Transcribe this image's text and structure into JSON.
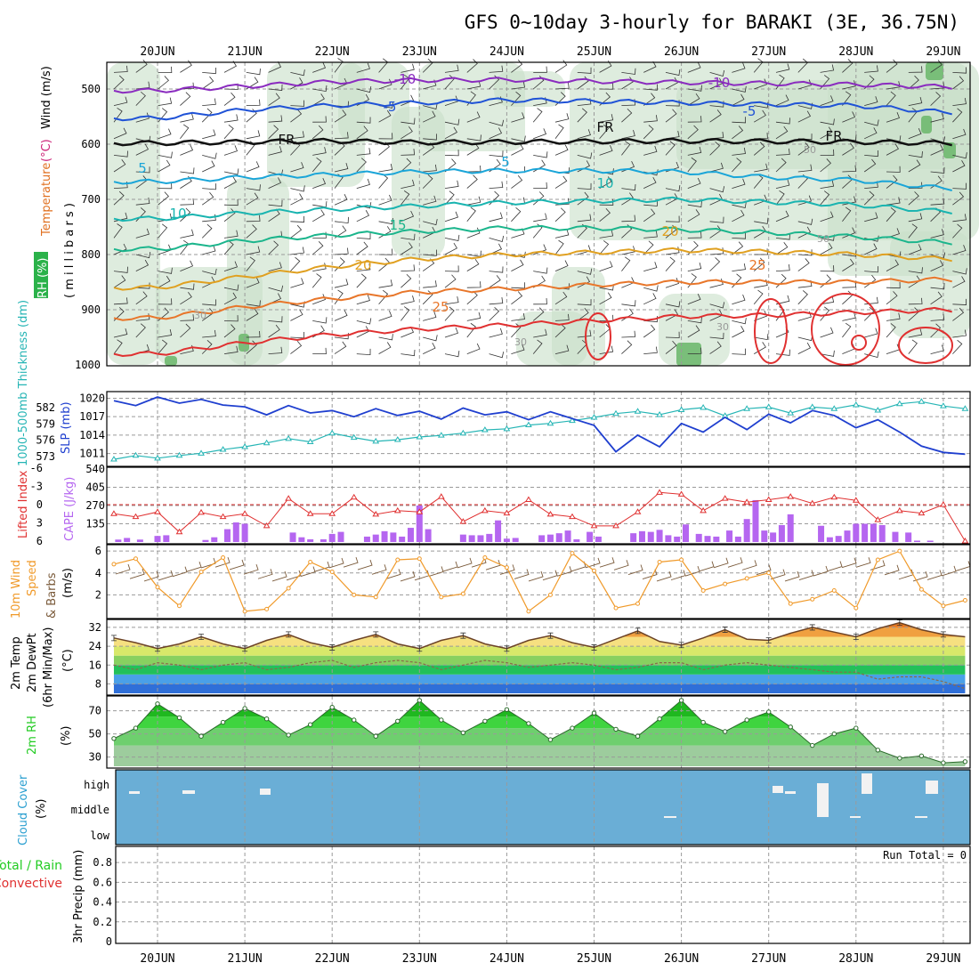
{
  "title": "GFS 0~10day 3-hourly for BARAKI (3E, 36.75N)",
  "dates": [
    "20JUN",
    "21JUN",
    "22JUN",
    "23JUN",
    "24JUN",
    "25JUN",
    "26JUN",
    "27JUN",
    "28JUN",
    "29JUN"
  ],
  "run_total": "Run Total = 0",
  "colors": {
    "rh_shade": "#c8dfc8",
    "rh_dark": "#6fb96f",
    "temp_neg10": "#8a2bbf",
    "temp_neg5": "#1f52d6",
    "temp_fr": "#111111",
    "temp_5": "#1aa5d8",
    "temp_10": "#19b4b0",
    "temp_15": "#1bb58c",
    "temp_20": "#e0a020",
    "temp_25": "#e8762a",
    "temp_30": "#e03030",
    "temp_35": "#cc1880",
    "slp": "#1f3fcf",
    "thickness": "#26b5b5",
    "lifted": "#e03030",
    "cape": "#b566f0",
    "wind": "#f09a2a",
    "barb": "#7a5a3a",
    "cloud": "#6aaed6",
    "rh2m": "#22cc22",
    "precip_total": "#22cc22",
    "precip_conv": "#e03030"
  },
  "panels": {
    "upper": {
      "ylabel_rh": "RH (%)",
      "ylabel_temp": "Temperature",
      "ylabel_temp_unit": "(°C)",
      "ylabel_wind": "Wind (m/s)",
      "ylabel_mb": "( m i l l i b a r s )",
      "yticks": [
        "500",
        "600",
        "700",
        "800",
        "900",
        "1000"
      ],
      "contour_labels": [
        {
          "text": "-10",
          "color": "temp_neg10"
        },
        {
          "text": "-10",
          "color": "temp_neg10"
        },
        {
          "text": "-5",
          "color": "temp_neg5"
        },
        {
          "text": "-5",
          "color": "temp_neg5"
        },
        {
          "text": "FR",
          "color": "temp_fr"
        },
        {
          "text": "FR",
          "color": "temp_fr"
        },
        {
          "text": "FR",
          "color": "temp_fr"
        },
        {
          "text": "5",
          "color": "temp_5"
        },
        {
          "text": "5",
          "color": "temp_5"
        },
        {
          "text": "10",
          "color": "temp_10"
        },
        {
          "text": "10",
          "color": "temp_10"
        },
        {
          "text": "15",
          "color": "temp_15"
        },
        {
          "text": "20",
          "color": "temp_20"
        },
        {
          "text": "20",
          "color": "temp_20"
        },
        {
          "text": "25",
          "color": "temp_25"
        },
        {
          "text": "25",
          "color": "temp_25"
        },
        {
          "text": "30",
          "color": "rh_text"
        },
        {
          "text": "30",
          "color": "rh_text"
        },
        {
          "text": "30",
          "color": "rh_text"
        },
        {
          "text": "50",
          "color": "rh_text"
        },
        {
          "text": "50",
          "color": "rh_text"
        }
      ]
    },
    "slp_thk": {
      "ylabel_thk": "1000-500mb Thickness (dm)",
      "ylabel_slp": "SLP (mb)",
      "yticks_thk": [
        "582",
        "579",
        "576",
        "573"
      ],
      "yticks_slp": [
        "1020",
        "1017",
        "1014",
        "1011"
      ]
    },
    "li_cape": {
      "ylabel_li": "Lifted Index",
      "ylabel_cape": "CAPE (J/kg)",
      "yticks_li": [
        "-6",
        "-3",
        "0",
        "3",
        "6"
      ],
      "yticks_cape": [
        "540",
        "405",
        "270",
        "135"
      ]
    },
    "wind10": {
      "ylabel_a": "10m Wind",
      "ylabel_b": "Speed",
      "ylabel_c": "& Barbs",
      "ylabel_unit": "(m/s)",
      "yticks": [
        "6",
        "4",
        "2"
      ]
    },
    "temp2m": {
      "ylabel_a": "2m Temp",
      "ylabel_b": "2m DewPt",
      "ylabel_c": "(6hr Min/Max)",
      "ylabel_unit": "(°C)",
      "yticks": [
        "32",
        "24",
        "16",
        "8"
      ]
    },
    "rh2m": {
      "ylabel": "2m RH",
      "ylabel_unit": "(%)",
      "yticks": [
        "70",
        "50",
        "30"
      ]
    },
    "cloud": {
      "ylabel": "Cloud Cover",
      "ylabel_unit": "(%)",
      "levels": [
        "high",
        "middle",
        "low"
      ]
    },
    "precip": {
      "ylabel_a": "Total / Rain",
      "ylabel_b": "Convective",
      "ylabel_c": "3hr Precip (mm)",
      "yticks": [
        "0.8",
        "0.6",
        "0.4",
        "0.2",
        "0"
      ]
    }
  },
  "chart_data": [
    {
      "type": "line",
      "name": "SLP",
      "ylabel": "SLP (mb)",
      "ylim": [
        1009.5,
        1021
      ],
      "x_unit": "days from 20JUN 00Z",
      "x": [
        -0.5,
        -0.25,
        0,
        0.25,
        0.5,
        0.75,
        1,
        1.25,
        1.5,
        1.75,
        2,
        2.25,
        2.5,
        2.75,
        3,
        3.25,
        3.5,
        3.75,
        4,
        4.25,
        4.5,
        4.75,
        5,
        5.25,
        5.5,
        5.75,
        6,
        6.25,
        6.5,
        6.75,
        7,
        7.25,
        7.5,
        7.75,
        8,
        8.25,
        8.5,
        8.75,
        9,
        9.25
      ],
      "values": [
        1019.6,
        1018.8,
        1020.2,
        1019.2,
        1019.8,
        1018.9,
        1018.6,
        1017.3,
        1018.8,
        1017.6,
        1018.0,
        1017.0,
        1018.3,
        1017.2,
        1017.9,
        1016.6,
        1018.4,
        1017.3,
        1017.8,
        1016.5,
        1017.8,
        1016.7,
        1015.6,
        1011.3,
        1014.0,
        1012.1,
        1015.9,
        1014.5,
        1016.9,
        1014.9,
        1017.4,
        1016.0,
        1018.0,
        1017.2,
        1015.2,
        1016.5,
        1014.5,
        1012.2,
        1011.2,
        1010.9
      ]
    },
    {
      "type": "line",
      "name": "Thickness",
      "ylabel": "1000-500mb Thickness (dm)",
      "ylim": [
        571.8,
        584.5
      ],
      "x_unit": "days from 20JUN 00Z",
      "x": [
        -0.5,
        -0.25,
        0,
        0.25,
        0.5,
        0.75,
        1,
        1.25,
        1.5,
        1.75,
        2,
        2.25,
        2.5,
        2.75,
        3,
        3.25,
        3.5,
        3.75,
        4,
        4.25,
        4.5,
        4.75,
        5,
        5.25,
        5.5,
        5.75,
        6,
        6.25,
        6.5,
        6.75,
        7,
        7.25,
        7.5,
        7.75,
        8,
        8.25,
        8.5,
        8.75,
        9,
        9.25
      ],
      "values": [
        572.5,
        573.2,
        572.7,
        573.2,
        573.6,
        574.3,
        574.8,
        575.5,
        576.3,
        575.7,
        577.3,
        576.5,
        575.8,
        576.1,
        576.6,
        576.9,
        577.3,
        577.9,
        578.1,
        578.8,
        579.1,
        579.6,
        580.2,
        580.9,
        581.3,
        580.7,
        581.6,
        582.0,
        580.5,
        581.8,
        582.1,
        581.0,
        582.1,
        581.8,
        582.5,
        581.5,
        582.7,
        583.1,
        582.3,
        581.8
      ]
    },
    {
      "type": "bar",
      "name": "CAPE",
      "ylabel": "CAPE (J/kg)",
      "ylim": [
        0,
        540
      ],
      "x_unit": "days from 20JUN 00Z",
      "x": [
        -0.45,
        -0.35,
        -0.2,
        0,
        0.1,
        0.55,
        0.65,
        0.8,
        0.9,
        1.0,
        1.55,
        1.65,
        1.75,
        1.9,
        2.0,
        2.1,
        2.4,
        2.5,
        2.6,
        2.7,
        2.8,
        2.9,
        3.0,
        3.1,
        3.5,
        3.6,
        3.7,
        3.8,
        3.9,
        4.0,
        4.1,
        4.4,
        4.5,
        4.6,
        4.7,
        4.8,
        4.95,
        5.05,
        5.45,
        5.55,
        5.65,
        5.75,
        5.85,
        5.95,
        6.05,
        6.2,
        6.3,
        6.4,
        6.55,
        6.65,
        6.75,
        6.85,
        6.95,
        7.05,
        7.15,
        7.25,
        7.6,
        7.7,
        7.8,
        7.9,
        8.0,
        8.1,
        8.2,
        8.3,
        8.45,
        8.6,
        8.7,
        8.85
      ],
      "values": [
        18,
        30,
        18,
        45,
        50,
        15,
        35,
        95,
        145,
        135,
        70,
        35,
        20,
        20,
        60,
        75,
        40,
        55,
        80,
        70,
        40,
        105,
        270,
        95,
        55,
        50,
        50,
        60,
        160,
        25,
        30,
        50,
        55,
        65,
        85,
        20,
        75,
        40,
        65,
        80,
        75,
        90,
        50,
        40,
        130,
        60,
        45,
        40,
        85,
        40,
        170,
        310,
        85,
        70,
        125,
        205,
        120,
        35,
        45,
        85,
        135,
        135,
        135,
        125,
        75,
        70,
        10,
        10
      ]
    },
    {
      "type": "line",
      "name": "Lifted Index",
      "ylabel": "Lifted Index",
      "ylim": [
        6,
        -6
      ],
      "x_unit": "days from 20JUN 00Z",
      "x": [
        -0.5,
        -0.25,
        0,
        0.25,
        0.5,
        0.75,
        1,
        1.25,
        1.5,
        1.75,
        2,
        2.25,
        2.5,
        2.75,
        3,
        3.25,
        3.5,
        3.75,
        4,
        4.25,
        4.5,
        4.75,
        5,
        5.25,
        5.5,
        5.75,
        6,
        6.25,
        6.5,
        6.75,
        7,
        7.25,
        7.5,
        7.75,
        8,
        8.25,
        8.5,
        8.75,
        9,
        9.25
      ],
      "values": [
        1.5,
        2,
        1.2,
        4.5,
        1.3,
        2,
        1.5,
        3.5,
        -1,
        1.5,
        1.5,
        -1.2,
        1.6,
        1,
        1.2,
        -1.3,
        2.8,
        1,
        1.4,
        -0.8,
        1.6,
        2,
        3.5,
        3.5,
        1.2,
        -2,
        -1.7,
        1,
        -1,
        -0.4,
        -0.8,
        -1.3,
        -0.2,
        -1.2,
        -0.7,
        2.5,
        1,
        1.4,
        0,
        6
      ]
    },
    {
      "type": "line",
      "name": "10m Wind Speed",
      "ylabel": "(m/s)",
      "ylim": [
        0,
        6.5
      ],
      "x_unit": "days from 20JUN 00Z",
      "x": [
        -0.5,
        -0.25,
        0,
        0.25,
        0.5,
        0.75,
        1,
        1.25,
        1.5,
        1.75,
        2,
        2.25,
        2.5,
        2.75,
        3,
        3.25,
        3.5,
        3.75,
        4,
        4.25,
        4.5,
        4.75,
        5,
        5.25,
        5.5,
        5.75,
        6,
        6.25,
        6.5,
        6.75,
        7,
        7.25,
        7.5,
        7.75,
        8,
        8.25,
        8.5,
        8.75,
        9,
        9.25
      ],
      "values": [
        4.8,
        5.3,
        2.7,
        1.0,
        4.1,
        5.4,
        0.5,
        0.7,
        2.6,
        5.0,
        4.1,
        2.0,
        1.8,
        5.2,
        5.3,
        1.8,
        2.1,
        5.4,
        4.5,
        0.5,
        2.0,
        5.8,
        4.2,
        0.8,
        1.2,
        5.0,
        5.2,
        2.4,
        3.0,
        3.5,
        4.0,
        1.2,
        1.6,
        2.4,
        0.8,
        5.2,
        6.0,
        2.5,
        1.0,
        1.5
      ]
    },
    {
      "type": "area",
      "name": "2m Temp",
      "ylabel": "(°C)",
      "ylim": [
        4,
        35
      ],
      "x_unit": "days from 20JUN 00Z",
      "x": [
        -0.5,
        -0.25,
        0,
        0.25,
        0.5,
        0.75,
        1,
        1.25,
        1.5,
        1.75,
        2,
        2.25,
        2.5,
        2.75,
        3,
        3.25,
        3.5,
        3.75,
        4,
        4.25,
        4.5,
        4.75,
        5,
        5.25,
        5.5,
        5.75,
        6,
        6.25,
        6.5,
        6.75,
        7,
        7.25,
        7.5,
        7.75,
        8,
        8.25,
        8.5,
        8.75,
        9,
        9.25
      ],
      "values": [
        27.5,
        25.5,
        23.0,
        25.0,
        28.0,
        25.0,
        23.0,
        26.5,
        29.0,
        25.5,
        23.5,
        26.5,
        29.0,
        25.0,
        23.0,
        26.5,
        28.5,
        25.0,
        23.0,
        26.5,
        28.5,
        25.5,
        23.5,
        27.0,
        30.5,
        26.0,
        24.5,
        27.5,
        31.0,
        27.0,
        26.5,
        29.5,
        32.0,
        30.0,
        28.0,
        31.5,
        34.0,
        31.0,
        29.0,
        28.0
      ]
    },
    {
      "type": "line",
      "name": "2m DewPt",
      "ylabel": "(°C)",
      "ylim": [
        4,
        35
      ],
      "x_unit": "days from 20JUN 00Z",
      "x": [
        -0.5,
        -0.25,
        0,
        0.25,
        0.5,
        0.75,
        1,
        1.25,
        1.5,
        1.75,
        2,
        2.25,
        2.5,
        2.75,
        3,
        3.25,
        3.5,
        3.75,
        4,
        4.25,
        4.5,
        4.75,
        5,
        5.25,
        5.5,
        5.75,
        6,
        6.25,
        6.5,
        6.75,
        7,
        7.25,
        7.5,
        7.75,
        8,
        8.25,
        8.5,
        8.75,
        9,
        9.25
      ],
      "values": [
        16,
        14,
        17,
        16,
        14,
        16,
        17,
        14,
        15,
        17,
        18,
        15,
        17,
        18,
        17,
        14,
        16,
        18,
        17,
        15,
        16,
        17,
        16,
        14,
        15,
        17,
        17,
        14,
        16,
        17,
        16,
        15,
        14,
        13,
        13,
        10,
        11,
        11,
        9,
        6
      ]
    },
    {
      "type": "area",
      "name": "2m RH",
      "ylabel": "(%)",
      "ylim": [
        22,
        82
      ],
      "x_unit": "days from 20JUN 00Z",
      "x": [
        -0.5,
        -0.25,
        0,
        0.25,
        0.5,
        0.75,
        1,
        1.25,
        1.5,
        1.75,
        2,
        2.25,
        2.5,
        2.75,
        3,
        3.25,
        3.5,
        3.75,
        4,
        4.25,
        4.5,
        4.75,
        5,
        5.25,
        5.5,
        5.75,
        6,
        6.25,
        6.5,
        6.75,
        7,
        7.25,
        7.5,
        7.75,
        8,
        8.25,
        8.5,
        8.75,
        9,
        9.25
      ],
      "values": [
        46,
        55,
        76,
        64,
        48,
        60,
        72,
        63,
        49,
        58,
        73,
        62,
        48,
        61,
        79,
        62,
        51,
        61,
        71,
        59,
        45,
        55,
        68,
        54,
        48,
        63,
        79,
        60,
        52,
        62,
        69,
        56,
        40,
        50,
        55,
        36,
        29,
        31,
        25,
        26
      ]
    },
    {
      "type": "bar",
      "name": "3hr Precip",
      "ylabel": "3hr Precip (mm)",
      "ylim": [
        0,
        0.9
      ],
      "x_unit": "days from 20JUN 00Z",
      "x": [
        0,
        1,
        2,
        3,
        4,
        5,
        6,
        7,
        8,
        9
      ],
      "values": [
        0,
        0,
        0,
        0,
        0,
        0,
        0,
        0,
        0,
        0
      ]
    }
  ]
}
